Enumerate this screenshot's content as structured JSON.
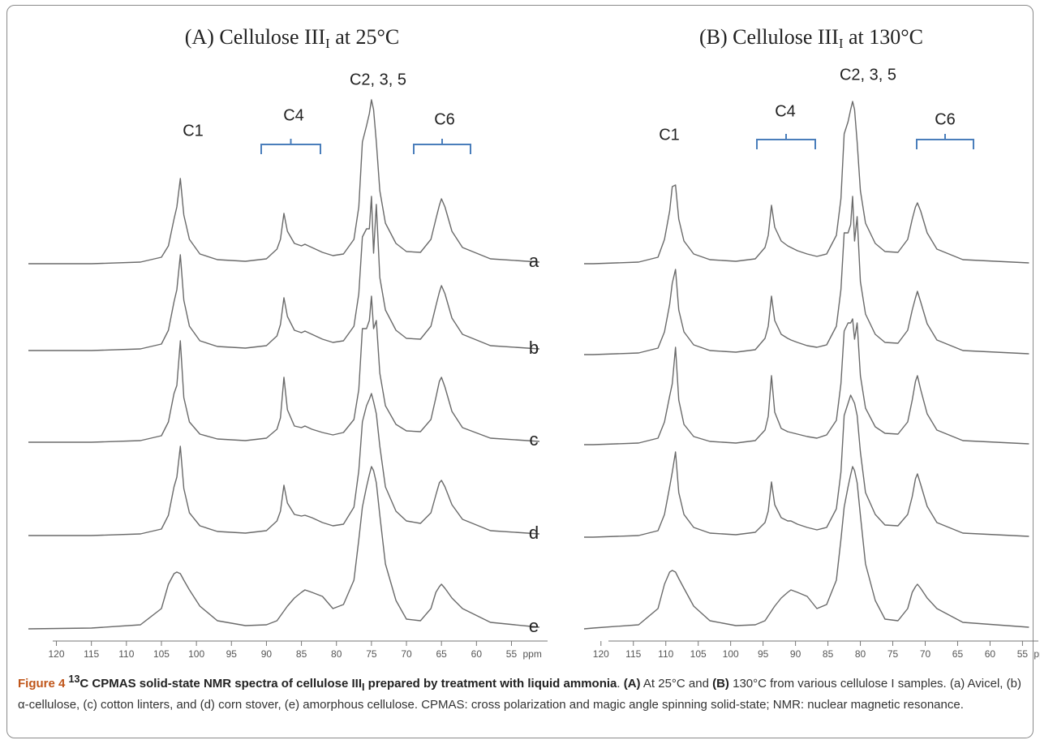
{
  "chart_data": [
    {
      "type": "line",
      "title": [
        "(A) Cellulose III",
        "I",
        " at 25°C"
      ],
      "xlabel": "ppm",
      "color": "#6a6a6a",
      "xlim": [
        124,
        51
      ],
      "xticks": [
        120,
        115,
        110,
        105,
        100,
        95,
        90,
        85,
        80,
        75,
        70,
        65,
        60,
        55
      ],
      "annotations": [
        "C1",
        "C4",
        "C2, 3, 5",
        "C6"
      ],
      "x": [
        124,
        115,
        108,
        105,
        104,
        103.2,
        102.8,
        102.3,
        101.8,
        101,
        99.5,
        97,
        93,
        90,
        88.5,
        88,
        87.5,
        87,
        86,
        85,
        84.5,
        83.5,
        82,
        80.5,
        79,
        77.5,
        76.8,
        76.3,
        75.7,
        75.3,
        75,
        74.7,
        74.3,
        73.8,
        73,
        71.5,
        70,
        68,
        66.5,
        65.8,
        65.3,
        65,
        64.5,
        63.5,
        62,
        58,
        51
      ],
      "series": [
        {
          "name": "a",
          "values": [
            0,
            0,
            2,
            8,
            22,
            55,
            70,
            105,
            60,
            30,
            12,
            5,
            3,
            6,
            18,
            30,
            62,
            40,
            25,
            22,
            24,
            20,
            14,
            10,
            12,
            30,
            70,
            150,
            170,
            185,
            202,
            190,
            150,
            90,
            50,
            25,
            15,
            14,
            30,
            55,
            72,
            80,
            70,
            40,
            20,
            6,
            2
          ]
        },
        {
          "name": "b",
          "values": [
            0,
            0,
            2,
            8,
            25,
            60,
            75,
            118,
            62,
            30,
            12,
            5,
            3,
            6,
            18,
            32,
            65,
            42,
            25,
            22,
            24,
            20,
            14,
            10,
            12,
            30,
            70,
            140,
            150,
            150,
            190,
            120,
            180,
            90,
            50,
            25,
            15,
            14,
            30,
            55,
            72,
            80,
            70,
            40,
            20,
            6,
            2
          ]
        },
        {
          "name": "c",
          "values": [
            0,
            0,
            2,
            8,
            25,
            60,
            70,
            125,
            55,
            25,
            10,
            4,
            2,
            5,
            16,
            30,
            80,
            40,
            20,
            18,
            20,
            16,
            12,
            9,
            12,
            28,
            65,
            140,
            140,
            150,
            180,
            140,
            150,
            85,
            45,
            22,
            14,
            13,
            28,
            55,
            75,
            80,
            68,
            38,
            18,
            5,
            1
          ]
        },
        {
          "name": "d",
          "values": [
            0,
            0,
            2,
            8,
            25,
            60,
            72,
            110,
            58,
            28,
            12,
            5,
            3,
            6,
            18,
            30,
            62,
            40,
            26,
            24,
            25,
            22,
            16,
            12,
            14,
            35,
            80,
            140,
            160,
            168,
            175,
            165,
            150,
            110,
            60,
            30,
            18,
            15,
            28,
            50,
            65,
            68,
            60,
            38,
            20,
            6,
            2
          ]
        },
        {
          "name": "e",
          "values": [
            0,
            1,
            5,
            25,
            55,
            68,
            70,
            68,
            60,
            48,
            28,
            10,
            4,
            5,
            10,
            16,
            22,
            28,
            38,
            45,
            48,
            45,
            40,
            25,
            30,
            60,
            110,
            150,
            175,
            190,
            200,
            195,
            180,
            140,
            80,
            35,
            12,
            10,
            25,
            45,
            52,
            55,
            50,
            38,
            25,
            8,
            2
          ]
        }
      ]
    },
    {
      "type": "line",
      "title": [
        "(B) Cellulose III",
        "I",
        " at 130°C"
      ],
      "xlabel": "ppm",
      "color": "#6a6a6a",
      "xlim": [
        122.6,
        53.8
      ],
      "xticks": [
        120,
        115,
        110,
        105,
        100,
        95,
        90,
        85,
        80,
        75,
        70,
        65,
        60,
        55
      ],
      "annotations": [
        "C1",
        "C4",
        "C2, 3, 5",
        "C6"
      ],
      "x": [
        122.6,
        121.2,
        114.2,
        111.2,
        110.2,
        109.4,
        109,
        108.5,
        108,
        107.2,
        105.7,
        103.2,
        99.2,
        96.2,
        94.7,
        94.2,
        93.7,
        93.2,
        92.2,
        91.2,
        90.7,
        89.7,
        88.2,
        86.7,
        85.2,
        83.7,
        83,
        82.5,
        81.9,
        81.5,
        81.2,
        80.9,
        80.5,
        80,
        79.2,
        77.7,
        76.2,
        74.2,
        72.7,
        72,
        71.5,
        71.2,
        70.7,
        69.7,
        68.2,
        64.2,
        54
      ],
      "series": [
        {
          "values": [
            0,
            0,
            2,
            8,
            30,
            65,
            95,
            97,
            55,
            28,
            12,
            5,
            3,
            6,
            20,
            35,
            72,
            45,
            28,
            22,
            20,
            16,
            12,
            9,
            12,
            35,
            80,
            160,
            175,
            190,
            200,
            190,
            150,
            90,
            50,
            25,
            15,
            14,
            30,
            55,
            70,
            75,
            65,
            38,
            18,
            5,
            1
          ]
        },
        {
          "values": [
            0,
            0,
            2,
            8,
            28,
            62,
            88,
            105,
            55,
            28,
            12,
            5,
            3,
            6,
            20,
            35,
            72,
            42,
            25,
            20,
            18,
            15,
            11,
            9,
            12,
            35,
            80,
            150,
            150,
            160,
            195,
            140,
            170,
            90,
            50,
            25,
            15,
            14,
            30,
            55,
            70,
            78,
            65,
            38,
            18,
            5,
            1
          ]
        },
        {
          "values": [
            0,
            0,
            2,
            8,
            28,
            60,
            75,
            120,
            55,
            25,
            10,
            4,
            2,
            5,
            18,
            35,
            85,
            40,
            20,
            16,
            15,
            13,
            10,
            8,
            12,
            30,
            75,
            140,
            150,
            150,
            155,
            130,
            150,
            85,
            45,
            22,
            14,
            13,
            28,
            55,
            78,
            85,
            68,
            38,
            18,
            5,
            1
          ]
        },
        {
          "values": [
            0,
            0,
            2,
            8,
            28,
            62,
            80,
            105,
            55,
            28,
            12,
            5,
            3,
            6,
            18,
            32,
            68,
            40,
            24,
            20,
            20,
            16,
            12,
            9,
            12,
            35,
            80,
            150,
            165,
            175,
            170,
            165,
            150,
            105,
            55,
            28,
            15,
            14,
            28,
            50,
            72,
            78,
            65,
            38,
            18,
            5,
            1
          ]
        },
        {
          "values": [
            0,
            1,
            5,
            25,
            55,
            70,
            72,
            70,
            62,
            50,
            28,
            10,
            4,
            5,
            10,
            16,
            22,
            28,
            38,
            45,
            48,
            45,
            40,
            25,
            30,
            60,
            110,
            150,
            175,
            190,
            200,
            195,
            180,
            140,
            80,
            35,
            12,
            10,
            25,
            45,
            52,
            55,
            50,
            38,
            25,
            8,
            2
          ]
        }
      ]
    }
  ],
  "caption": [
    "Figure 4 ",
    "13",
    "C CPMAS solid-state NMR spectra of cellulose III",
    "I",
    " prepared by treatment with liquid ammonia",
    ". ",
    "(A)",
    " At 25°C and ",
    "(B)",
    " 130°C from various cellulose I samples. (a) Avicel, (b) α-cellulose, (c) cotton linters, and (d) corn stover, (e) amorphous cellulose. CPMAS: cross polarization and magic angle spinning solid-state; NMR: nuclear magnetic resonance."
  ]
}
